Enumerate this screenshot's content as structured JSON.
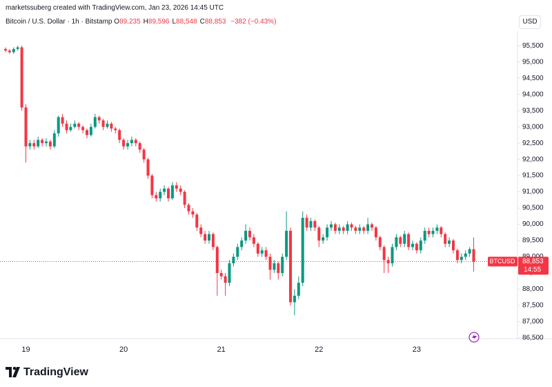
{
  "header": {
    "created": "marketssuberg created with TradingView.com, Jan 23, 2026 14:45 UTC",
    "symbol": "Bitcoin / U.S. Dollar · 1h · Bitstamp",
    "ohlc": [
      {
        "label": "O",
        "value": "89,235"
      },
      {
        "label": "H",
        "value": "89,596"
      },
      {
        "label": "L",
        "value": "88,548"
      },
      {
        "label": "C",
        "value": "88,853"
      }
    ],
    "change": "−382 (−0.43%)",
    "currency": "USD"
  },
  "logo": "TradingView",
  "chart_data": {
    "type": "candlestick",
    "categories": [
      null,
      null,
      null,
      null,
      null,
      "19",
      null,
      null,
      null,
      null,
      null,
      null,
      null,
      null,
      null,
      null,
      null,
      null,
      null,
      null,
      null,
      null,
      null,
      null,
      null,
      null,
      null,
      null,
      null,
      "20",
      null,
      null,
      null,
      null,
      null,
      null,
      null,
      null,
      null,
      null,
      null,
      null,
      null,
      null,
      null,
      null,
      null,
      null,
      null,
      null,
      null,
      null,
      null,
      "21",
      null,
      null,
      null,
      null,
      null,
      null,
      null,
      null,
      null,
      null,
      null,
      null,
      null,
      null,
      null,
      null,
      null,
      null,
      null,
      null,
      null,
      null,
      null,
      "22",
      null,
      null,
      null,
      null,
      null,
      null,
      null,
      null,
      null,
      null,
      null,
      null,
      null,
      null,
      null,
      null,
      null,
      null,
      null,
      null,
      null,
      null,
      null,
      "23",
      null,
      null,
      null,
      null,
      null,
      null,
      null,
      null,
      null,
      null,
      null,
      null,
      null,
      null
    ],
    "open": [
      95400,
      95350,
      95300,
      95400,
      95450,
      93600,
      92400,
      92500,
      92400,
      92600,
      92500,
      92550,
      92400,
      92800,
      93300,
      93100,
      92900,
      93000,
      93100,
      93000,
      92900,
      92750,
      93000,
      93300,
      93200,
      93000,
      93100,
      92950,
      92900,
      92600,
      92400,
      92500,
      92600,
      92500,
      92300,
      92000,
      91500,
      90900,
      90800,
      91000,
      91100,
      90800,
      91200,
      91100,
      91000,
      90600,
      90400,
      90300,
      89900,
      89700,
      89500,
      89700,
      89300,
      88500,
      88400,
      88200,
      88800,
      89000,
      89300,
      89500,
      89800,
      89600,
      89400,
      89100,
      89200,
      89000,
      88600,
      88800,
      88500,
      89000,
      89800,
      87600,
      87800,
      88200,
      90200,
      89900,
      90100,
      89900,
      89500,
      89600,
      89900,
      90000,
      89800,
      89900,
      89800,
      90000,
      89900,
      89800,
      89900,
      89800,
      90000,
      89900,
      89600,
      89300,
      88900,
      88800,
      89300,
      89600,
      89400,
      89700,
      89300,
      89400,
      89200,
      89500,
      89800,
      89700,
      89800,
      89900,
      89700,
      89400,
      89500,
      89200,
      88900,
      89000,
      89100,
      89235
    ],
    "high": [
      95450,
      95400,
      95450,
      95500,
      95500,
      93700,
      92600,
      92600,
      92700,
      92650,
      92650,
      92600,
      92900,
      93350,
      93400,
      93200,
      93100,
      93200,
      93150,
      93050,
      92950,
      93100,
      93400,
      93350,
      93250,
      93200,
      93150,
      93000,
      92950,
      92650,
      92600,
      92700,
      92650,
      92550,
      92350,
      92050,
      91550,
      91000,
      91100,
      91200,
      91150,
      91300,
      91300,
      91200,
      91050,
      90650,
      90500,
      90350,
      90000,
      89800,
      89800,
      89750,
      89350,
      88600,
      88500,
      88900,
      89100,
      89400,
      89600,
      90000,
      89900,
      89700,
      89450,
      89300,
      89300,
      89100,
      88900,
      88850,
      89100,
      90400,
      89900,
      88000,
      88400,
      90400,
      90300,
      90200,
      90150,
      89950,
      89700,
      90000,
      90100,
      90050,
      90000,
      89950,
      90100,
      90050,
      89950,
      90000,
      89950,
      90200,
      90050,
      89950,
      89650,
      89350,
      89000,
      89400,
      89700,
      89650,
      89800,
      89750,
      89500,
      89450,
      89600,
      89900,
      89900,
      89900,
      90000,
      89950,
      89750,
      89600,
      89550,
      89250,
      89100,
      89200,
      89300,
      89596
    ],
    "low": [
      95300,
      95250,
      95250,
      95350,
      93500,
      91900,
      92300,
      92300,
      92350,
      92400,
      92400,
      92300,
      92350,
      92700,
      93000,
      92800,
      92850,
      92950,
      92900,
      92800,
      92650,
      92700,
      92950,
      93100,
      92900,
      92950,
      92850,
      92800,
      92500,
      92300,
      92300,
      92400,
      92400,
      92200,
      91900,
      91400,
      90800,
      90700,
      90700,
      90900,
      90700,
      90750,
      91000,
      90900,
      90500,
      90300,
      90200,
      89800,
      89600,
      89400,
      89400,
      89200,
      87800,
      88300,
      87800,
      88100,
      88700,
      88900,
      89200,
      89400,
      89500,
      89300,
      89000,
      89000,
      88900,
      88300,
      88500,
      88300,
      88400,
      88900,
      87500,
      87200,
      87700,
      88100,
      89800,
      89800,
      89800,
      89300,
      89400,
      89500,
      89800,
      89700,
      89700,
      89700,
      89700,
      89800,
      89700,
      89700,
      89700,
      89700,
      89800,
      89500,
      89200,
      88500,
      88500,
      88700,
      89200,
      89300,
      89300,
      89200,
      89200,
      89100,
      89100,
      89400,
      89600,
      89600,
      89700,
      89600,
      89300,
      89300,
      89100,
      88800,
      88800,
      88900,
      89000,
      88548
    ],
    "close": [
      95350,
      95300,
      95400,
      95450,
      93600,
      92400,
      92500,
      92400,
      92600,
      92500,
      92550,
      92400,
      92800,
      93300,
      93100,
      92900,
      93000,
      93100,
      93000,
      92900,
      92750,
      93000,
      93300,
      93200,
      93000,
      93100,
      92950,
      92900,
      92600,
      92400,
      92500,
      92600,
      92500,
      92300,
      92000,
      91500,
      90900,
      90800,
      91000,
      91100,
      90800,
      91200,
      91100,
      91000,
      90600,
      90400,
      90300,
      89900,
      89700,
      89500,
      89700,
      89300,
      88500,
      88400,
      88200,
      88800,
      89000,
      89300,
      89500,
      89800,
      89600,
      89400,
      89100,
      89200,
      89000,
      88600,
      88800,
      88500,
      89000,
      89800,
      87600,
      87800,
      88200,
      90200,
      89900,
      90100,
      89900,
      89500,
      89600,
      89900,
      90000,
      89800,
      89900,
      89800,
      90000,
      89900,
      89800,
      89900,
      89800,
      90000,
      89900,
      89600,
      89300,
      88900,
      88800,
      89300,
      89600,
      89400,
      89700,
      89300,
      89400,
      89200,
      89500,
      89800,
      89700,
      89800,
      89900,
      89700,
      89400,
      89500,
      89200,
      88900,
      89000,
      89100,
      89235,
      88853
    ],
    "ylim": [
      86480,
      95950
    ],
    "yticks": [
      {
        "value": 86500,
        "label": "86,500"
      },
      {
        "value": 87000,
        "label": "87,000"
      },
      {
        "value": 87500,
        "label": "87,500"
      },
      {
        "value": 88000,
        "label": "88,000"
      },
      {
        "value": 88500,
        "label": "88,500"
      },
      {
        "value": 89000,
        "label": "89,000"
      },
      {
        "value": 89500,
        "label": "89,500"
      },
      {
        "value": 90000,
        "label": "90,000"
      },
      {
        "value": 90500,
        "label": "90,500"
      },
      {
        "value": 91000,
        "label": "91,000"
      },
      {
        "value": 91500,
        "label": "91,500"
      },
      {
        "value": 92000,
        "label": "92,000"
      },
      {
        "value": 92500,
        "label": "92,500"
      },
      {
        "value": 93000,
        "label": "93,000"
      },
      {
        "value": 93500,
        "label": "93,500"
      },
      {
        "value": 94000,
        "label": "94,000"
      },
      {
        "value": 94500,
        "label": "94,500"
      },
      {
        "value": 95000,
        "label": "95,000"
      },
      {
        "value": 95500,
        "label": "95,500"
      }
    ],
    "up_color": "#089981",
    "down_color": "#f23645",
    "symbol_tag": "BTCUSD",
    "last_price_label": "88,853",
    "countdown": "14:55"
  }
}
